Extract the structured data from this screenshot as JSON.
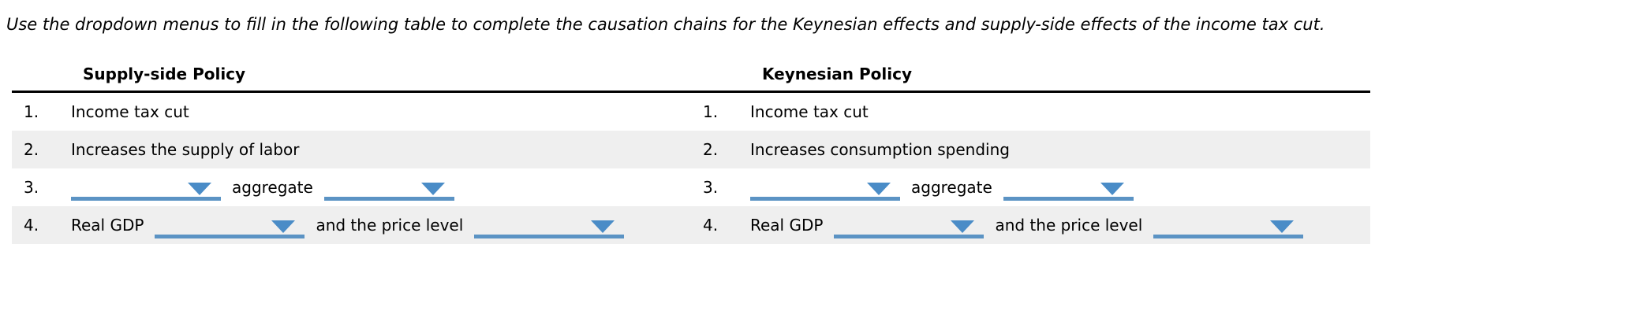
{
  "instruction": "Use the dropdown menus to fill in the following table to complete the causation chains for the Keynesian effects and supply-side effects of the income tax cut.",
  "colors": {
    "accent_blue_triangle": "#4a8cc7",
    "accent_blue_underline": "#5b93c4",
    "row_stripe": "#efefef",
    "table_border": "#000000"
  },
  "icons": {
    "dropdown_arrow": "triangle-down"
  },
  "table": {
    "columns": [
      {
        "header": "Supply-side Policy",
        "rows": [
          {
            "num": "1.",
            "text": "Income tax cut"
          },
          {
            "num": "2.",
            "text": "Increases the supply of labor"
          },
          {
            "num": "3.",
            "dd1_value": "",
            "mid": "aggregate",
            "dd2_value": ""
          },
          {
            "num": "4.",
            "pre": "Real GDP",
            "dd1_value": "",
            "mid": "and the price level",
            "dd2_value": ""
          }
        ]
      },
      {
        "header": "Keynesian Policy",
        "rows": [
          {
            "num": "1.",
            "text": "Income tax cut"
          },
          {
            "num": "2.",
            "text": "Increases consumption spending"
          },
          {
            "num": "3.",
            "dd1_value": "",
            "mid": "aggregate",
            "dd2_value": ""
          },
          {
            "num": "4.",
            "pre": "Real GDP",
            "dd1_value": "",
            "mid": "and the price level",
            "dd2_value": ""
          }
        ]
      }
    ]
  }
}
